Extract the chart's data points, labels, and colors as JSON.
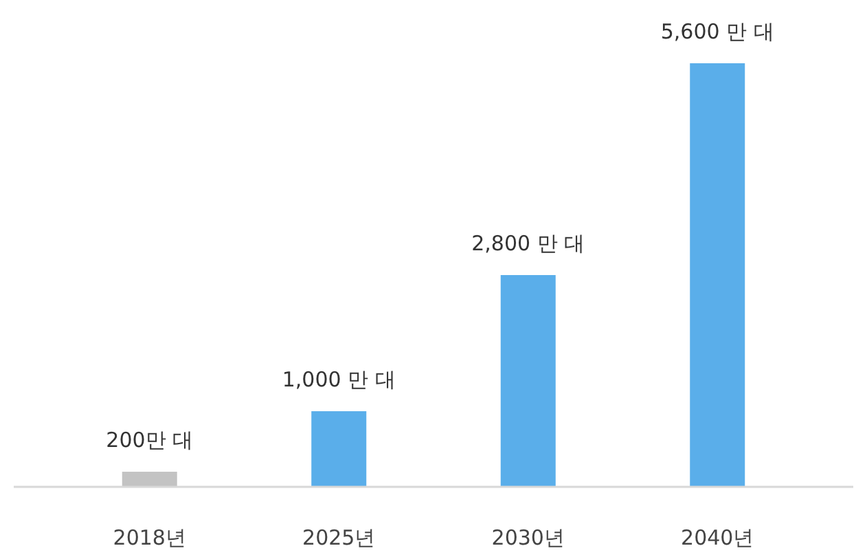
{
  "chart_data": {
    "type": "bar",
    "categories": [
      "2018년",
      "2025년",
      "2030년",
      "2040년"
    ],
    "values": [
      200,
      1000,
      2800,
      5600
    ],
    "colors": [
      "#c3c3c3",
      "#5aaeea",
      "#5aaeea",
      "#5aaeea"
    ],
    "value_labels": [
      "200만 대",
      "1,000 만 대",
      "2,800 만 대",
      "5,600 만 대"
    ]
  }
}
